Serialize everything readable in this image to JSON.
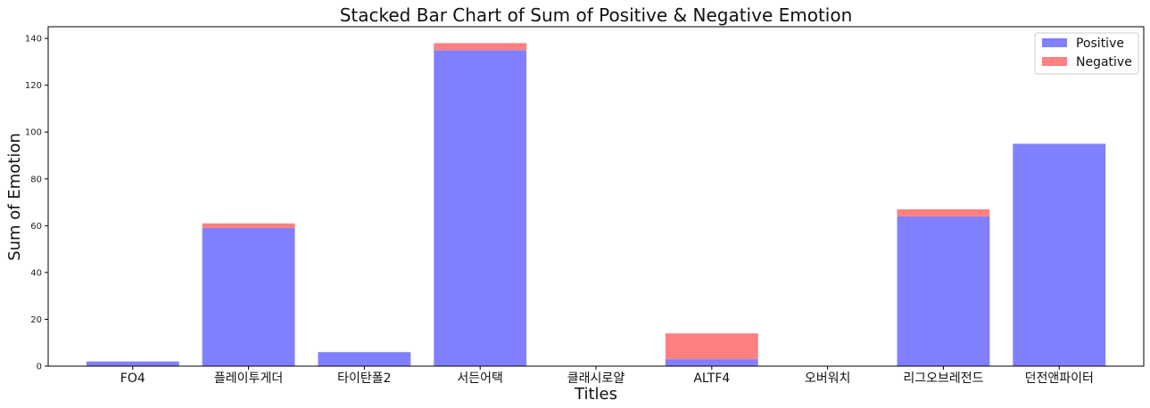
{
  "chart_data": {
    "type": "bar",
    "stacked": true,
    "title": "Stacked Bar Chart of Sum of Positive & Negative Emotion",
    "xlabel": "Titles",
    "ylabel": "Sum of Emotion",
    "categories": [
      "FO4",
      "플레이투게더",
      "타이탄폴2",
      "서든어택",
      "클래시로얄",
      "ALTF4",
      "오버워치",
      "리그오브레전드",
      "던전앤파이터"
    ],
    "series": [
      {
        "name": "Positive",
        "color": "#8080ff",
        "values": [
          2,
          59,
          6,
          135,
          0,
          3,
          0,
          64,
          95
        ]
      },
      {
        "name": "Negative",
        "color": "#ff8080",
        "values": [
          0,
          2,
          0,
          3,
          0,
          11,
          0,
          3,
          0
        ]
      }
    ],
    "ylim": [
      0,
      145
    ],
    "yticks": [
      0,
      20,
      40,
      60,
      80,
      100,
      120,
      140
    ],
    "grid": false,
    "legend_position": "top-right"
  }
}
